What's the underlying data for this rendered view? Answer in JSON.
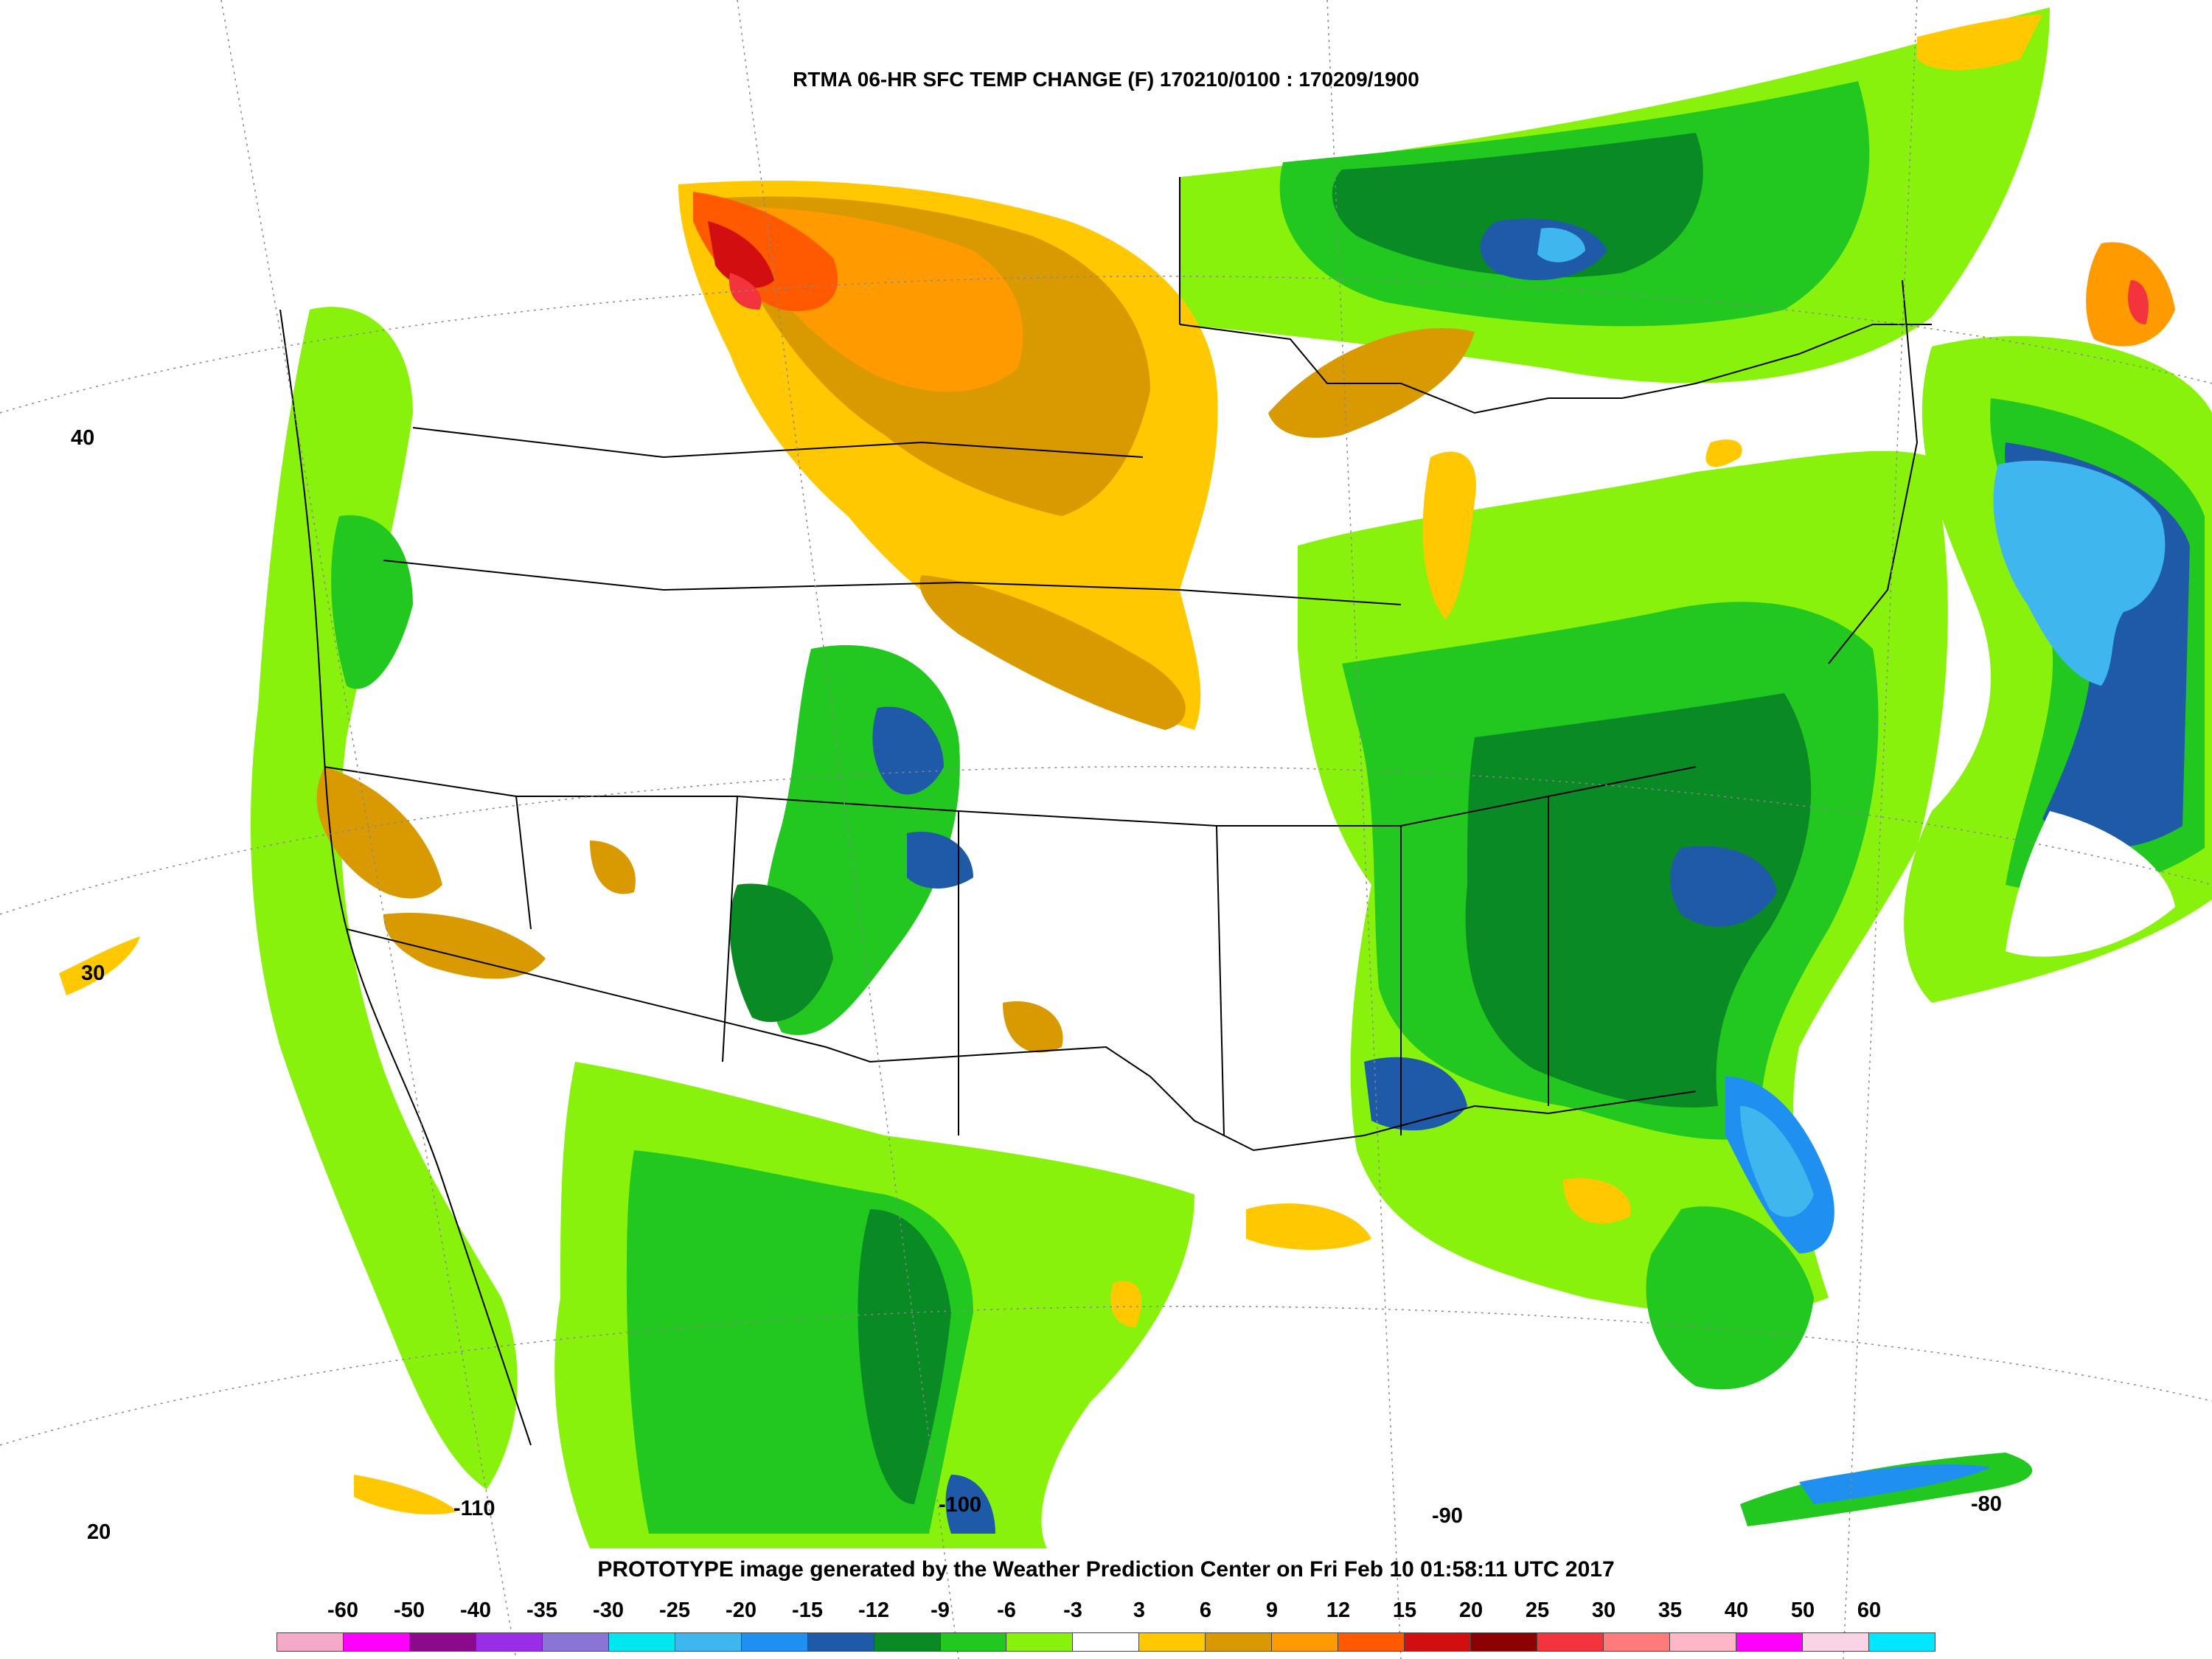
{
  "title": "RTMA 06-HR SFC TEMP CHANGE (F) 170210/0100 : 170209/1900",
  "footer": "PROTOTYPE image generated by the Weather Prediction Center on Fri Feb 10 01:58:11 UTC 2017",
  "lat_labels": [
    "40",
    "30",
    "20"
  ],
  "lon_labels": [
    "-110",
    "-100",
    "-90",
    "-80"
  ],
  "legend": {
    "labels": [
      "-60",
      "-50",
      "-40",
      "-35",
      "-30",
      "-25",
      "-20",
      "-15",
      "-12",
      "-9",
      "-6",
      "-3",
      "3",
      "6",
      "9",
      "12",
      "15",
      "20",
      "25",
      "30",
      "35",
      "40",
      "50",
      "60"
    ],
    "colors": [
      "#f4a9c6",
      "#ff00ff",
      "#8b0a8b",
      "#9a2ee6",
      "#8a74d6",
      "#00e8ee",
      "#3fb6ee",
      "#1f8ff0",
      "#1e5aa8",
      "#0a8a24",
      "#22c81f",
      "#88f20c",
      "#ffffff",
      "#ffc800",
      "#d99900",
      "#ff9a00",
      "#ff5a00",
      "#d10f10",
      "#8b0000",
      "#f4343c",
      "#ff7a7a",
      "#ffb6c6",
      "#ff00ff",
      "#f8d4e4",
      "#00e8ff"
    ]
  }
}
